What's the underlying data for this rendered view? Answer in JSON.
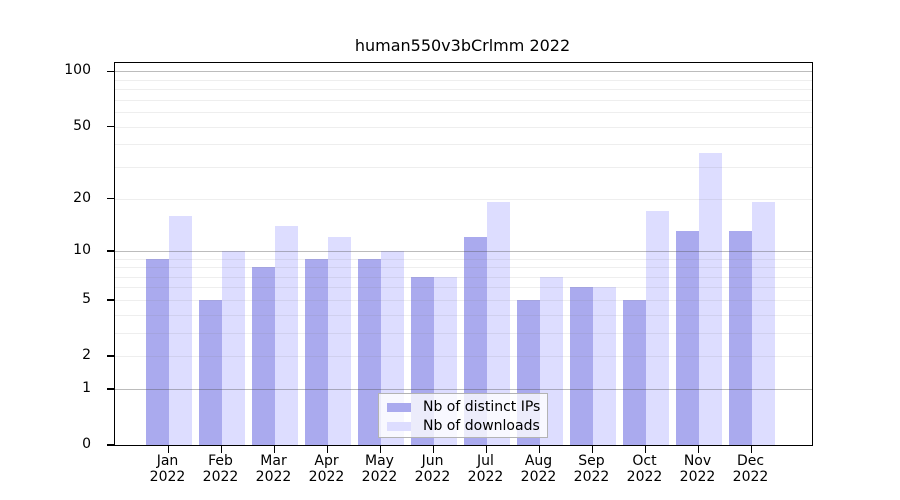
{
  "title": "human550v3bCrlmm 2022",
  "colors": {
    "ips_bar": "#AAAAEE",
    "downloads_bar": "#DDDDFF",
    "frame": "#000000",
    "grid_major": "#bcbcbc",
    "grid_minor": "#ededed",
    "legend_border": "#b3b3b3"
  },
  "y_axis": {
    "tick_values": [
      0,
      1,
      2,
      5,
      10,
      20,
      50,
      100
    ],
    "tick_labels": [
      "0",
      "1",
      "2",
      "5",
      "10",
      "20",
      "50",
      "100"
    ],
    "minor_gridline_values": [
      2,
      3,
      4,
      5,
      6,
      7,
      8,
      9,
      20,
      30,
      40,
      50,
      60,
      70,
      80,
      90
    ],
    "major_gridline_values": [
      1,
      10,
      100
    ]
  },
  "x_axis": {
    "months": [
      "Jan",
      "Feb",
      "Mar",
      "Apr",
      "May",
      "Jun",
      "Jul",
      "Aug",
      "Sep",
      "Oct",
      "Nov",
      "Dec"
    ],
    "year": "2022"
  },
  "legend": {
    "items": [
      {
        "label": "Nb of distinct IPs",
        "series": "ips"
      },
      {
        "label": "Nb of downloads",
        "series": "downloads"
      }
    ]
  },
  "chart_data": {
    "type": "bar",
    "title": "human550v3bCrlmm 2022",
    "categories": [
      "Jan 2022",
      "Feb 2022",
      "Mar 2022",
      "Apr 2022",
      "May 2022",
      "Jun 2022",
      "Jul 2022",
      "Aug 2022",
      "Sep 2022",
      "Oct 2022",
      "Nov 2022",
      "Dec 2022"
    ],
    "series": [
      {
        "name": "Nb of distinct IPs",
        "color": "#AAAAEE",
        "values": [
          9,
          5,
          8,
          9,
          9,
          7,
          12,
          5,
          6,
          5,
          13,
          13
        ]
      },
      {
        "name": "Nb of downloads",
        "color": "#DDDDFF",
        "values": [
          16,
          10,
          14,
          12,
          10,
          7,
          19,
          7,
          6,
          17,
          36,
          19
        ]
      }
    ],
    "xlabel": "",
    "ylabel": "",
    "y_scale": "log10(value+1)",
    "y_ticks": [
      0,
      1,
      2,
      5,
      10,
      20,
      50,
      100
    ],
    "ylim": [
      0,
      111
    ],
    "grid": "horizontal, drawn over bars",
    "legend_position": "inside bottom-center"
  }
}
